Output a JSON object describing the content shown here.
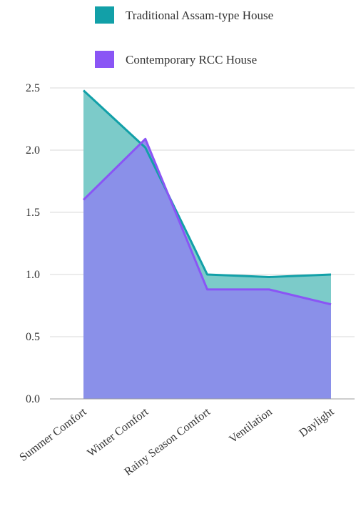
{
  "chart_data": {
    "type": "area",
    "title": "",
    "xlabel": "",
    "ylabel": "",
    "categories": [
      "Summer Comfort",
      "Winter Comfort",
      "Rainy Season Comfort",
      "Ventilation",
      "Daylight"
    ],
    "ylim": [
      0,
      2.5
    ],
    "yticks": [
      "0.0",
      "0.5",
      "1.0",
      "1.5",
      "2.0",
      "2.5"
    ],
    "grid": true,
    "legend_position": "top",
    "series": [
      {
        "name": "Traditional Assam-type House",
        "values": [
          2.48,
          2.02,
          1.0,
          0.98,
          1.0
        ],
        "line_color": "#12a0a8",
        "fill_color": "#7ccbc9"
      },
      {
        "name": "Contemporary RCC House",
        "values": [
          1.6,
          2.09,
          0.88,
          0.88,
          0.76
        ],
        "line_color": "#8a55f5",
        "fill_color": "#8a8eea"
      }
    ]
  }
}
